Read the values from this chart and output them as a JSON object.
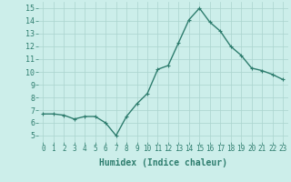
{
  "x": [
    0,
    1,
    2,
    3,
    4,
    5,
    6,
    7,
    8,
    9,
    10,
    11,
    12,
    13,
    14,
    15,
    16,
    17,
    18,
    19,
    20,
    21,
    22,
    23
  ],
  "y": [
    6.7,
    6.7,
    6.6,
    6.3,
    6.5,
    6.5,
    6.0,
    5.0,
    6.5,
    7.5,
    8.3,
    10.2,
    10.5,
    12.3,
    14.1,
    15.0,
    13.9,
    13.2,
    12.0,
    11.3,
    10.3,
    10.1,
    9.8,
    9.4
  ],
  "line_color": "#2e7d6e",
  "marker": "+",
  "markersize": 3,
  "linewidth": 1.0,
  "xlabel": "Humidex (Indice chaleur)",
  "xlabel_fontsize": 7,
  "xlim": [
    -0.5,
    23.5
  ],
  "ylim": [
    4.5,
    15.5
  ],
  "yticks": [
    5,
    6,
    7,
    8,
    9,
    10,
    11,
    12,
    13,
    14,
    15
  ],
  "xticks": [
    0,
    1,
    2,
    3,
    4,
    5,
    6,
    7,
    8,
    9,
    10,
    11,
    12,
    13,
    14,
    15,
    16,
    17,
    18,
    19,
    20,
    21,
    22,
    23
  ],
  "xtick_labels": [
    "0",
    "1",
    "2",
    "3",
    "4",
    "5",
    "6",
    "7",
    "8",
    "9",
    "10",
    "11",
    "12",
    "13",
    "14",
    "15",
    "16",
    "17",
    "18",
    "19",
    "20",
    "21",
    "22",
    "23"
  ],
  "bg_color": "#cceeea",
  "grid_color": "#aad4ce",
  "tick_fontsize": 5.5,
  "ytick_fontsize": 6
}
